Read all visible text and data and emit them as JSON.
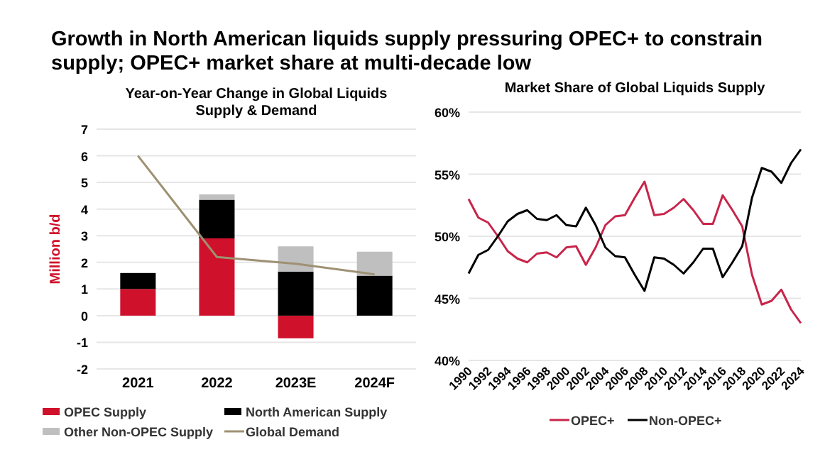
{
  "chart_data": [
    {
      "type": "bar",
      "title": "Growth in North American liquids supply pressuring OPEC+ to constrain supply; OPEC+ market share at multi-decade low",
      "subtitle": "Year-on-Year Change in Global Liquids Supply & Demand",
      "ylabel": "Million b/d",
      "categories": [
        "2021",
        "2022",
        "2023E",
        "2024F"
      ],
      "stacked": true,
      "legend": "bottom",
      "grid": "y",
      "ylim": [
        -2,
        7
      ],
      "yticks": [
        -2,
        -1,
        0,
        1,
        2,
        3,
        4,
        5,
        6,
        7
      ],
      "series": [
        {
          "name": "OPEC Supply",
          "color": "#d0112b",
          "values": [
            1.0,
            2.9,
            -0.85,
            0.0
          ]
        },
        {
          "name": "North American Supply",
          "color": "#000000",
          "values": [
            0.6,
            1.45,
            1.65,
            1.5
          ]
        },
        {
          "name": "Other Non-OPEC Supply",
          "color": "#bfbfbf",
          "values": [
            0,
            0.2,
            0.95,
            0.9
          ]
        },
        {
          "name": "Global Demand",
          "type": "line",
          "color": "#9e9173",
          "values": [
            6.0,
            2.2,
            1.95,
            1.55
          ]
        }
      ]
    },
    {
      "type": "line",
      "title": "Market Share of Global Liquids Supply",
      "legend": "bottom",
      "grid": "y",
      "x": [
        1990,
        1991,
        1992,
        1993,
        1994,
        1995,
        1996,
        1997,
        1998,
        1999,
        2000,
        2001,
        2002,
        2003,
        2004,
        2005,
        2006,
        2007,
        2008,
        2009,
        2010,
        2011,
        2012,
        2013,
        2014,
        2015,
        2016,
        2017,
        2018,
        2019,
        2020,
        2021,
        2022,
        2023,
        2024
      ],
      "xlim": [
        1990,
        2024
      ],
      "xticks": [
        1990,
        1992,
        1994,
        1996,
        1998,
        2000,
        2002,
        2004,
        2006,
        2008,
        2010,
        2012,
        2014,
        2016,
        2018,
        2020,
        2022,
        2024
      ],
      "ylim": [
        40,
        60
      ],
      "yticks": [
        {
          "value": 40,
          "label": "40%"
        },
        {
          "value": 45,
          "label": "45%"
        },
        {
          "value": 50,
          "label": "50%"
        },
        {
          "value": 55,
          "label": "55%"
        },
        {
          "value": 60,
          "label": "60%"
        }
      ],
      "series": [
        {
          "name": "OPEC+",
          "color": "#c8254a",
          "values": [
            53.0,
            51.5,
            51.1,
            50.0,
            48.8,
            48.2,
            47.9,
            48.6,
            48.7,
            48.3,
            49.1,
            49.2,
            47.7,
            49.1,
            50.9,
            51.6,
            51.7,
            53.1,
            54.4,
            51.7,
            51.8,
            52.3,
            53.0,
            52.1,
            51.0,
            51.0,
            53.3,
            52.1,
            50.8,
            46.9,
            44.5,
            44.8,
            45.7,
            44.1,
            43.0
          ]
        },
        {
          "name": "Non-OPEC+",
          "color": "#000000",
          "values": [
            47.0,
            48.5,
            48.9,
            50.0,
            51.2,
            51.8,
            52.1,
            51.4,
            51.3,
            51.7,
            50.9,
            50.8,
            52.3,
            50.9,
            49.1,
            48.4,
            48.3,
            46.9,
            45.6,
            48.3,
            48.2,
            47.7,
            47.0,
            47.9,
            49.0,
            49.0,
            46.7,
            47.9,
            49.2,
            53.1,
            55.5,
            55.2,
            54.3,
            55.9,
            57.0
          ]
        }
      ]
    }
  ]
}
